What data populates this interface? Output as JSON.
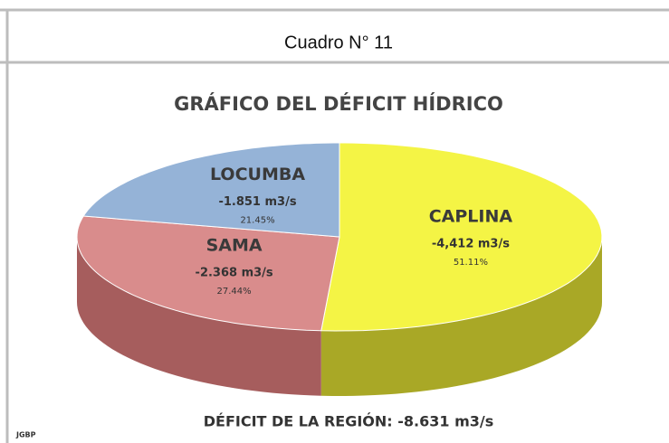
{
  "caption": "Cuadro N° 11",
  "chart_data": {
    "type": "pie",
    "title": "GRÁFICO DEL DÉFICIT HÍDRICO",
    "categories": [
      "CAPLINA",
      "SAMA",
      "LOCUMBA"
    ],
    "flow_labels": [
      "-4,412 m3/s",
      "-2.368 m3/s",
      "-1.851  m3/s"
    ],
    "values": [
      51.11,
      27.44,
      21.45
    ],
    "value_labels": [
      "51.11%",
      "27.44%",
      "21.45%"
    ],
    "colors": [
      "#f4f445",
      "#d98c8c",
      "#95b3d7"
    ],
    "side_colors": [
      "#a9a826",
      "#a65d5d",
      "#6d88ab"
    ],
    "note": "DÉFICIT DE LA REGIÓN: -8.631 m3/s",
    "credit": "JGBP"
  }
}
